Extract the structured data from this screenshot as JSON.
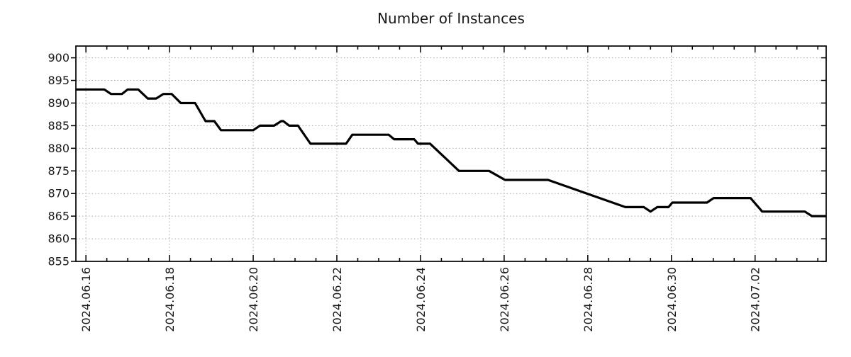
{
  "chart_data": {
    "type": "line",
    "title": "Number of Instances",
    "legend": "none",
    "grid": {
      "show": true,
      "style": "dotted",
      "color": "#a9a9a9"
    },
    "line_color": "#000000",
    "x_axis": {
      "kind": "date",
      "day_offset_origin": "2024.06.16",
      "domain_days": [
        -0.24,
        17.7
      ],
      "tick_days": [
        0,
        2,
        4,
        6,
        8,
        10,
        12,
        14,
        16
      ],
      "tick_labels": [
        "2024.06.16",
        "2024.06.18",
        "2024.06.20",
        "2024.06.22",
        "2024.06.24",
        "2024.06.26",
        "2024.06.28",
        "2024.06.30",
        "2024.07.02"
      ],
      "minor_tick_interval_days": 0.5
    },
    "y_axis": {
      "ylim": [
        855,
        902.6
      ],
      "ticks": [
        855,
        860,
        865,
        870,
        875,
        880,
        885,
        890,
        895,
        900
      ],
      "tick_labels": [
        "855",
        "860",
        "865",
        "870",
        "875",
        "880",
        "885",
        "890",
        "895",
        "900"
      ]
    },
    "series": [
      {
        "name": "instances",
        "color": "#000000",
        "points_day_value": [
          [
            -0.24,
            893
          ],
          [
            0.44,
            893
          ],
          [
            0.6,
            892
          ],
          [
            0.86,
            892
          ],
          [
            1.0,
            893
          ],
          [
            1.25,
            893
          ],
          [
            1.48,
            891
          ],
          [
            1.68,
            891
          ],
          [
            1.85,
            892
          ],
          [
            2.05,
            892
          ],
          [
            2.27,
            890
          ],
          [
            2.61,
            890
          ],
          [
            2.86,
            886
          ],
          [
            3.07,
            886
          ],
          [
            3.23,
            884
          ],
          [
            4.0,
            884
          ],
          [
            4.16,
            885
          ],
          [
            4.5,
            885
          ],
          [
            4.67,
            886
          ],
          [
            4.72,
            886
          ],
          [
            4.86,
            885
          ],
          [
            5.07,
            885
          ],
          [
            5.37,
            881
          ],
          [
            6.22,
            881
          ],
          [
            6.37,
            883
          ],
          [
            7.24,
            883
          ],
          [
            7.37,
            882
          ],
          [
            7.85,
            882
          ],
          [
            7.94,
            881
          ],
          [
            8.23,
            881
          ],
          [
            8.92,
            875
          ],
          [
            9.64,
            875
          ],
          [
            10.02,
            873
          ],
          [
            11.05,
            873
          ],
          [
            12.9,
            867
          ],
          [
            13.34,
            867
          ],
          [
            13.5,
            866
          ],
          [
            13.66,
            867
          ],
          [
            13.93,
            867
          ],
          [
            14.02,
            868
          ],
          [
            14.85,
            868
          ],
          [
            15.01,
            869
          ],
          [
            15.89,
            869
          ],
          [
            16.17,
            866
          ],
          [
            17.19,
            866
          ],
          [
            17.36,
            865
          ],
          [
            17.7,
            865
          ]
        ]
      }
    ]
  }
}
